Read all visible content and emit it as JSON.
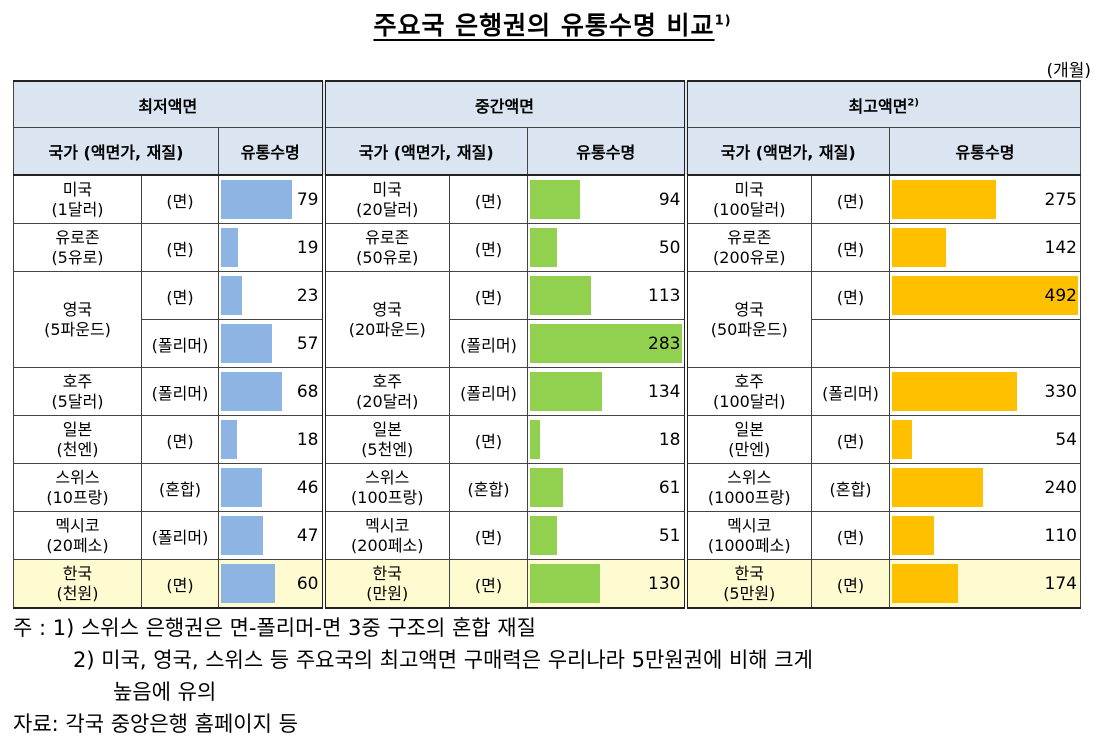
{
  "title": "주요국 은행권의 유통수명 비교",
  "title_sup": "1)",
  "unit": "(개월)",
  "groups": [
    {
      "label": "최저액면",
      "sup": ""
    },
    {
      "label": "중간액면",
      "sup": ""
    },
    {
      "label": "최고액면",
      "sup": "2)"
    }
  ],
  "col_country": "국가 (액면가, 재질)",
  "col_life": "유통수명",
  "colors": {
    "low": "#8db4e2",
    "mid": "#92d050",
    "high": "#ffc000",
    "header_bg": "#dbe5f1",
    "korea_bg": "#fefbd1"
  },
  "low": [
    {
      "country": "미국",
      "denom": "(1달러)",
      "material": "(면)",
      "value": 79
    },
    {
      "country": "유로존",
      "denom": "(5유로)",
      "material": "(면)",
      "value": 19
    },
    {
      "country": "영국",
      "denom": "(5파운드)",
      "materials": [
        "(면)",
        "(폴리머)"
      ],
      "values": [
        23,
        57
      ]
    },
    {
      "country": "호주",
      "denom": "(5달러)",
      "material": "(폴리머)",
      "value": 68
    },
    {
      "country": "일본",
      "denom": "(천엔)",
      "material": "(면)",
      "value": 18
    },
    {
      "country": "스위스",
      "denom": "(10프랑)",
      "material": "(혼합)",
      "value": 46
    },
    {
      "country": "멕시코",
      "denom": "(20페소)",
      "material": "(폴리머)",
      "value": 47
    },
    {
      "country": "한국",
      "denom": "(천원)",
      "material": "(면)",
      "value": 60
    }
  ],
  "mid": [
    {
      "country": "미국",
      "denom": "(20달러)",
      "material": "(면)",
      "value": 94
    },
    {
      "country": "유로존",
      "denom": "(50유로)",
      "material": "(면)",
      "value": 50
    },
    {
      "country": "영국",
      "denom": "(20파운드)",
      "materials": [
        "(면)",
        "(폴리머)"
      ],
      "values": [
        113,
        283
      ]
    },
    {
      "country": "호주",
      "denom": "(20달러)",
      "material": "(폴리머)",
      "value": 134
    },
    {
      "country": "일본",
      "denom": "(5천엔)",
      "material": "(면)",
      "value": 18
    },
    {
      "country": "스위스",
      "denom": "(100프랑)",
      "material": "(혼합)",
      "value": 61
    },
    {
      "country": "멕시코",
      "denom": "(200페소)",
      "material": "(면)",
      "value": 51
    },
    {
      "country": "한국",
      "denom": "(만원)",
      "material": "(면)",
      "value": 130
    }
  ],
  "high": [
    {
      "country": "미국",
      "denom": "(100달러)",
      "material": "(면)",
      "value": 275
    },
    {
      "country": "유로존",
      "denom": "(200유로)",
      "material": "(면)",
      "value": 142
    },
    {
      "country": "영국",
      "denom": "(50파운드)",
      "material": "(면)",
      "value": 492
    },
    {
      "country": "호주",
      "denom": "(100달러)",
      "material": "(폴리머)",
      "value": 330
    },
    {
      "country": "일본",
      "denom": "(만엔)",
      "material": "(면)",
      "value": 54
    },
    {
      "country": "스위스",
      "denom": "(1000프랑)",
      "material": "(혼합)",
      "value": 240
    },
    {
      "country": "멕시코",
      "denom": "(1000페소)",
      "material": "(면)",
      "value": 110
    },
    {
      "country": "한국",
      "denom": "(5만원)",
      "material": "(면)",
      "value": 174
    }
  ],
  "bar_scale_max": {
    "low": 110,
    "mid": 283,
    "high": 492
  },
  "notes": {
    "n1": "주 : 1) 스위스 은행권은 면-폴리머-면 3중 구조의 혼합 재질",
    "n2a": "2) 미국, 영국, 스위스 등 주요국의 최고액면 구매력은 우리나라 5만원권에 비해 크게",
    "n2b": "높음에 유의",
    "source": "자료: 각국 중앙은행 홈페이지 등"
  }
}
